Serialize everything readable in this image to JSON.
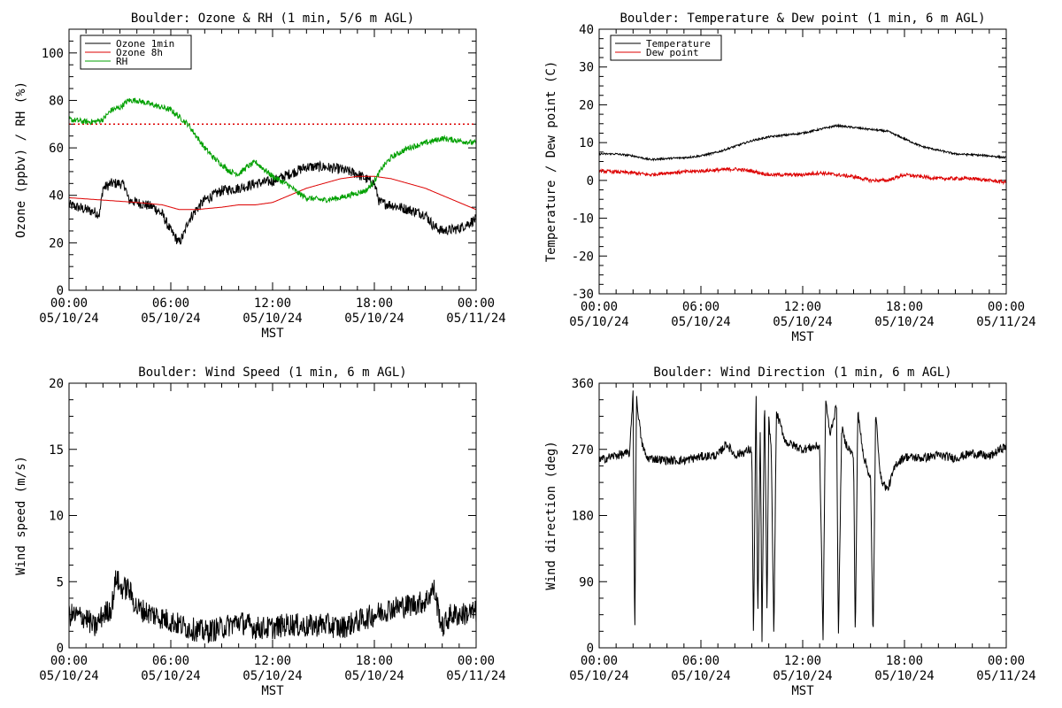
{
  "chart_data": [
    {
      "type": "line",
      "title": "Boulder: Ozone & RH (1 min, 5/6 m AGL)",
      "xlabel": "MST",
      "ylabel": "Ozone (ppbv) / RH (%)",
      "ylim": [
        0,
        110
      ],
      "yticks": [
        0,
        20,
        40,
        60,
        80,
        100
      ],
      "xticks": [
        {
          "t": 0,
          "line1": "00:00",
          "line2": "05/10/24"
        },
        {
          "t": 6,
          "line1": "06:00",
          "line2": "05/10/24"
        },
        {
          "t": 12,
          "line1": "12:00",
          "line2": "05/10/24"
        },
        {
          "t": 18,
          "line1": "18:00",
          "line2": "05/10/24"
        },
        {
          "t": 24,
          "line1": "00:00",
          "line2": "05/11/24"
        }
      ],
      "legend_position": "top-left",
      "reference_line": {
        "y": 70,
        "color": "#dd0000",
        "style": "dotted"
      },
      "series": [
        {
          "name": "Ozone 1min",
          "color": "#000000",
          "noise": 2.2,
          "points": [
            [
              0,
              36
            ],
            [
              0.5,
              35
            ],
            [
              1,
              34
            ],
            [
              1.5,
              33
            ],
            [
              1.8,
              32
            ],
            [
              2,
              43
            ],
            [
              2.5,
              45
            ],
            [
              3,
              45
            ],
            [
              3.3,
              44
            ],
            [
              3.5,
              38
            ],
            [
              4,
              37
            ],
            [
              5,
              35
            ],
            [
              5.5,
              32
            ],
            [
              6,
              25
            ],
            [
              6.5,
              20
            ],
            [
              6.8,
              24
            ],
            [
              7,
              29
            ],
            [
              7.5,
              34
            ],
            [
              8,
              38
            ],
            [
              9,
              42
            ],
            [
              10,
              43
            ],
            [
              11,
              45
            ],
            [
              12,
              46
            ],
            [
              13,
              49
            ],
            [
              14,
              52
            ],
            [
              15,
              52
            ],
            [
              16,
              51
            ],
            [
              17,
              49
            ],
            [
              18,
              45
            ],
            [
              18.3,
              37
            ],
            [
              19,
              36
            ],
            [
              20,
              34
            ],
            [
              21,
              32
            ],
            [
              21.5,
              27
            ],
            [
              22,
              25
            ],
            [
              23,
              26
            ],
            [
              24,
              30
            ]
          ]
        },
        {
          "name": "Ozone 8h",
          "color": "#dd0000",
          "noise": 0,
          "points": [
            [
              0,
              39
            ],
            [
              2,
              38
            ],
            [
              4,
              37
            ],
            [
              5.5,
              36
            ],
            [
              6.5,
              34
            ],
            [
              7.5,
              34
            ],
            [
              9,
              35
            ],
            [
              10,
              36
            ],
            [
              11,
              36
            ],
            [
              12,
              37
            ],
            [
              13,
              40
            ],
            [
              14,
              43
            ],
            [
              15,
              45
            ],
            [
              16,
              47
            ],
            [
              17,
              48
            ],
            [
              18,
              48
            ],
            [
              19,
              47
            ],
            [
              20,
              45
            ],
            [
              21,
              43
            ],
            [
              22,
              40
            ],
            [
              23,
              37
            ],
            [
              24,
              34
            ]
          ]
        },
        {
          "name": "RH",
          "color": "#00a000",
          "noise": 1.2,
          "points": [
            [
              0,
              72
            ],
            [
              1,
              71
            ],
            [
              1.5,
              71
            ],
            [
              2,
              72
            ],
            [
              2.5,
              76
            ],
            [
              3,
              77
            ],
            [
              3.5,
              80
            ],
            [
              4,
              80
            ],
            [
              5,
              78
            ],
            [
              6,
              76
            ],
            [
              7,
              70
            ],
            [
              7.5,
              65
            ],
            [
              8,
              60
            ],
            [
              8.5,
              56
            ],
            [
              9,
              53
            ],
            [
              9.5,
              50
            ],
            [
              10,
              49
            ],
            [
              10.5,
              52
            ],
            [
              11,
              54
            ],
            [
              11.5,
              51
            ],
            [
              12,
              48
            ],
            [
              12.5,
              46
            ],
            [
              13,
              44
            ],
            [
              13.5,
              41
            ],
            [
              14,
              39
            ],
            [
              15,
              38
            ],
            [
              16,
              39
            ],
            [
              16.5,
              40
            ],
            [
              17,
              41
            ],
            [
              17.5,
              42
            ],
            [
              18,
              46
            ],
            [
              18.5,
              52
            ],
            [
              19,
              56
            ],
            [
              20,
              60
            ],
            [
              21,
              62
            ],
            [
              22,
              64
            ],
            [
              23,
              63
            ],
            [
              24,
              62
            ]
          ]
        }
      ]
    },
    {
      "type": "line",
      "title": "Boulder: Temperature & Dew point (1 min, 6 m AGL)",
      "xlabel": "MST",
      "ylabel": "Temperature / Dew point (C)",
      "ylim": [
        -30,
        40
      ],
      "yticks": [
        -30,
        -20,
        -10,
        0,
        10,
        20,
        30,
        40
      ],
      "xticks": [
        {
          "t": 0,
          "line1": "00:00",
          "line2": "05/10/24"
        },
        {
          "t": 6,
          "line1": "06:00",
          "line2": "05/10/24"
        },
        {
          "t": 12,
          "line1": "12:00",
          "line2": "05/10/24"
        },
        {
          "t": 18,
          "line1": "18:00",
          "line2": "05/10/24"
        },
        {
          "t": 24,
          "line1": "00:00",
          "line2": "05/11/24"
        }
      ],
      "legend_position": "top-left",
      "series": [
        {
          "name": "Temperature",
          "color": "#000000",
          "noise": 0.25,
          "points": [
            [
              0,
              7
            ],
            [
              1,
              7
            ],
            [
              2,
              6.5
            ],
            [
              3,
              5.5
            ],
            [
              4,
              5.8
            ],
            [
              5,
              6
            ],
            [
              6,
              6.5
            ],
            [
              7,
              7.5
            ],
            [
              8,
              9
            ],
            [
              9,
              10.5
            ],
            [
              10,
              11.5
            ],
            [
              11,
              12
            ],
            [
              12,
              12.5
            ],
            [
              13,
              13.5
            ],
            [
              14,
              14.5
            ],
            [
              15,
              14
            ],
            [
              16,
              13.5
            ],
            [
              17,
              13
            ],
            [
              18,
              11
            ],
            [
              19,
              9
            ],
            [
              20,
              8
            ],
            [
              21,
              7
            ],
            [
              22,
              6.8
            ],
            [
              23,
              6.5
            ],
            [
              24,
              6
            ]
          ]
        },
        {
          "name": "Dew point",
          "color": "#dd0000",
          "noise": 0.45,
          "points": [
            [
              0,
              2.5
            ],
            [
              2,
              2
            ],
            [
              3,
              1.5
            ],
            [
              4,
              2
            ],
            [
              6,
              2.5
            ],
            [
              8,
              3
            ],
            [
              9,
              2.5
            ],
            [
              10,
              1.5
            ],
            [
              11,
              1.5
            ],
            [
              12,
              1.5
            ],
            [
              13,
              2
            ],
            [
              14,
              1.5
            ],
            [
              15,
              1
            ],
            [
              16,
              0
            ],
            [
              17,
              0
            ],
            [
              18,
              1.5
            ],
            [
              19,
              1
            ],
            [
              20,
              0.5
            ],
            [
              21,
              0.5
            ],
            [
              22,
              0.5
            ],
            [
              23,
              0
            ],
            [
              24,
              -0.5
            ]
          ]
        }
      ]
    },
    {
      "type": "line",
      "title": "Boulder: Wind Speed (1 min, 6 m AGL)",
      "xlabel": "MST",
      "ylabel": "Wind speed (m/s)",
      "ylim": [
        0,
        20
      ],
      "yticks": [
        0,
        5,
        10,
        15,
        20
      ],
      "xticks": [
        {
          "t": 0,
          "line1": "00:00",
          "line2": "05/10/24"
        },
        {
          "t": 6,
          "line1": "06:00",
          "line2": "05/10/24"
        },
        {
          "t": 12,
          "line1": "12:00",
          "line2": "05/10/24"
        },
        {
          "t": 18,
          "line1": "18:00",
          "line2": "05/10/24"
        },
        {
          "t": 24,
          "line1": "00:00",
          "line2": "05/11/24"
        }
      ],
      "series": [
        {
          "name": "",
          "color": "#000000",
          "noise": 0.9,
          "points": [
            [
              0,
              2.5
            ],
            [
              1,
              2.3
            ],
            [
              1.5,
              1.5
            ],
            [
              2,
              2.5
            ],
            [
              2.5,
              3
            ],
            [
              2.8,
              5.5
            ],
            [
              3,
              4.5
            ],
            [
              3.5,
              4.5
            ],
            [
              4,
              3
            ],
            [
              5,
              2.5
            ],
            [
              6,
              2
            ],
            [
              7,
              1.5
            ],
            [
              8,
              1.2
            ],
            [
              9,
              1.5
            ],
            [
              10,
              2
            ],
            [
              11,
              1.5
            ],
            [
              12,
              1.5
            ],
            [
              13,
              1.8
            ],
            [
              14,
              1.6
            ],
            [
              15,
              1.8
            ],
            [
              16,
              1.5
            ],
            [
              17,
              2
            ],
            [
              18,
              2.5
            ],
            [
              19,
              3
            ],
            [
              20,
              3.2
            ],
            [
              21,
              3.5
            ],
            [
              21.5,
              4.5
            ],
            [
              22,
              1.5
            ],
            [
              22.5,
              2.5
            ],
            [
              23,
              2.5
            ],
            [
              24,
              2.7
            ]
          ]
        }
      ]
    },
    {
      "type": "line",
      "title": "Boulder: Wind Direction (1 min, 6 m AGL)",
      "xlabel": "MST",
      "ylabel": "Wind direction (deg)",
      "ylim": [
        0,
        360
      ],
      "yticks": [
        0,
        90,
        180,
        270,
        360
      ],
      "xticks": [
        {
          "t": 0,
          "line1": "00:00",
          "line2": "05/10/24"
        },
        {
          "t": 6,
          "line1": "06:00",
          "line2": "05/10/24"
        },
        {
          "t": 12,
          "line1": "12:00",
          "line2": "05/10/24"
        },
        {
          "t": 18,
          "line1": "18:00",
          "line2": "05/10/24"
        },
        {
          "t": 24,
          "line1": "00:00",
          "line2": "05/11/24"
        }
      ],
      "series": [
        {
          "name": "",
          "color": "#000000",
          "noise": 6,
          "points": [
            [
              0,
              255
            ],
            [
              1,
              262
            ],
            [
              1.8,
              265
            ],
            [
              2,
              350
            ],
            [
              2.1,
              5
            ],
            [
              2.2,
              340
            ],
            [
              2.5,
              280
            ],
            [
              2.8,
              258
            ],
            [
              3,
              258
            ],
            [
              4,
              255
            ],
            [
              5,
              255
            ],
            [
              6,
              260
            ],
            [
              7,
              262
            ],
            [
              7.5,
              278
            ],
            [
              8,
              262
            ],
            [
              9,
              270
            ],
            [
              9.1,
              5
            ],
            [
              9.25,
              350
            ],
            [
              9.35,
              30
            ],
            [
              9.5,
              300
            ],
            [
              9.6,
              5
            ],
            [
              9.75,
              345
            ],
            [
              9.9,
              40
            ],
            [
              10,
              310
            ],
            [
              10.15,
              270
            ],
            [
              10.3,
              10
            ],
            [
              10.45,
              320
            ],
            [
              11,
              280
            ],
            [
              12,
              270
            ],
            [
              13,
              275
            ],
            [
              13.2,
              5
            ],
            [
              13.35,
              340
            ],
            [
              13.6,
              290
            ],
            [
              14,
              330
            ],
            [
              14.1,
              5
            ],
            [
              14.3,
              300
            ],
            [
              14.5,
              280
            ],
            [
              15,
              260
            ],
            [
              15.1,
              10
            ],
            [
              15.25,
              320
            ],
            [
              15.6,
              260
            ],
            [
              16,
              230
            ],
            [
              16.15,
              5
            ],
            [
              16.3,
              320
            ],
            [
              16.6,
              230
            ],
            [
              17,
              215
            ],
            [
              17.5,
              250
            ],
            [
              18,
              260
            ],
            [
              19,
              258
            ],
            [
              20,
              262
            ],
            [
              21,
              258
            ],
            [
              22,
              265
            ],
            [
              23,
              260
            ],
            [
              24,
              275
            ]
          ]
        }
      ]
    }
  ]
}
